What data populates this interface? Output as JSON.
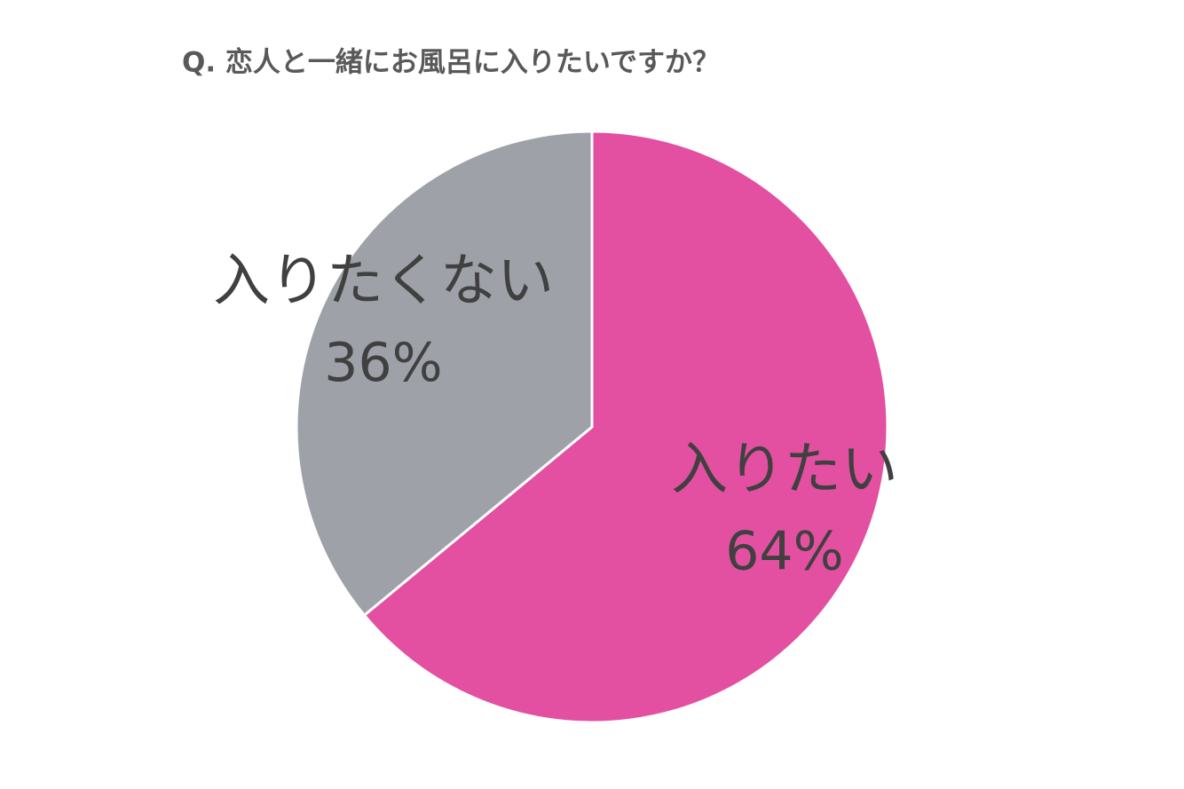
{
  "chart_data": {
    "type": "pie",
    "title": "Q. 恋人と一緒にお風呂に入りたいですか？",
    "categories": [
      "入りたい",
      "入りたくない"
    ],
    "values": [
      64,
      36
    ],
    "value_labels": [
      "64%",
      "36%"
    ],
    "colors": [
      "#e350a1",
      "#9ea1a8"
    ]
  }
}
